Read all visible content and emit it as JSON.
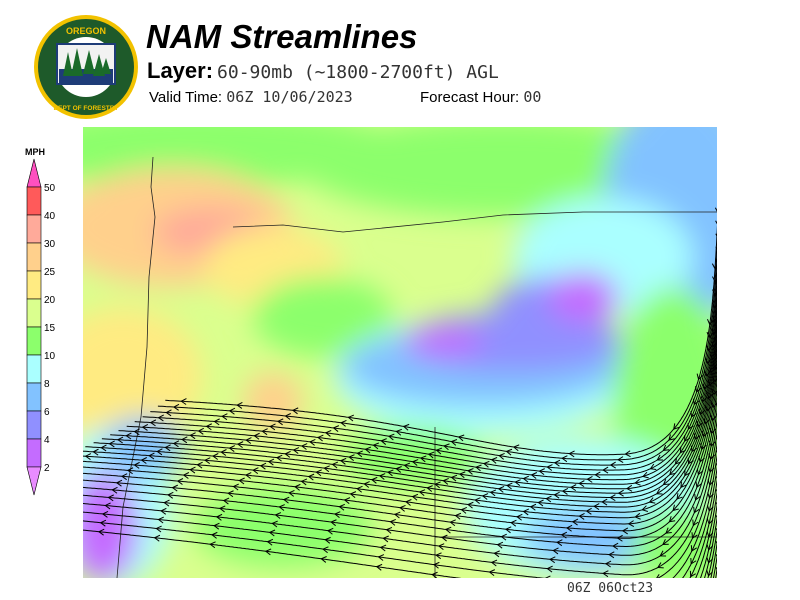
{
  "header": {
    "logo": {
      "top_text": "OREGON",
      "bottom_text": "DEPARTMENT OF FORESTRY"
    },
    "title": "NAM Streamlines",
    "layer_label": "Layer:",
    "layer_value": "60-90mb (~1800-2700ft) AGL",
    "valid_label": "Valid Time:",
    "valid_value": "06Z 10/06/2023",
    "forecast_label": "Forecast Hour:",
    "forecast_value": "00"
  },
  "colorbar": {
    "unit": "MPH",
    "levels": [
      "50",
      "40",
      "30",
      "25",
      "20",
      "15",
      "10",
      "8",
      "6",
      "4",
      "2"
    ],
    "colors": [
      "#ff5a5a",
      "#ffaa9a",
      "#ffd08c",
      "#ffeb82",
      "#daff8e",
      "#8cff6c",
      "#aaffff",
      "#82c2ff",
      "#9090ff",
      "#c46cff"
    ],
    "over_color": "#ff50c0",
    "under_color": "#e88cff"
  },
  "footer": {
    "stamp": "06Z 06Oct23"
  }
}
